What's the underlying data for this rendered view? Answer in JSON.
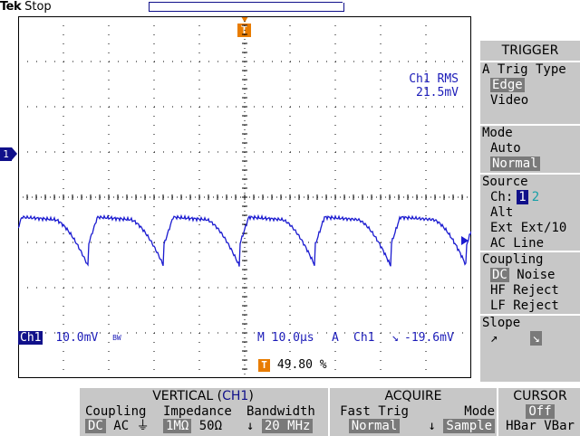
{
  "header": {
    "brand": "Tek",
    "state": "Stop"
  },
  "markers": {
    "trigger_glyph": "T",
    "channel_glyph": "1"
  },
  "measurement": {
    "label": "Ch1 RMS",
    "value": "21.5mV"
  },
  "status": {
    "channel": "Ch1",
    "volts_div": "10.0mV",
    "bw_mark": "BW",
    "timebase": "M 10.0µs",
    "trig_source_prefix": "A",
    "trig_channel": "Ch1",
    "trig_slope_glyph": "↘",
    "trig_level": "-19.6mV",
    "trig_position": "49.80 %"
  },
  "trigger_menu": {
    "title": "TRIGGER",
    "type": {
      "label": "A Trig Type",
      "options": [
        "Edge",
        "Video"
      ],
      "selected": "Edge"
    },
    "mode": {
      "label": "Mode",
      "options": [
        "Auto",
        "Normal"
      ],
      "selected": "Normal"
    },
    "source": {
      "label": "Source",
      "ch_label": "Ch:",
      "ch1": "1",
      "ch2": "2",
      "alt": "Alt",
      "ext": "Ext",
      "ext10": "Ext/10",
      "acline": "AC Line"
    },
    "coupling": {
      "label": "Coupling",
      "dc": "DC",
      "noise": "Noise",
      "hf": "HF Reject",
      "lf": "LF Reject"
    },
    "slope": {
      "label": "Slope",
      "rise": "↗",
      "fall": "↘"
    }
  },
  "vertical": {
    "title_prefix": "VERTICAL (",
    "title_ch": "CH1",
    "title_suffix": ")",
    "coupling_label": "Coupling",
    "coupling_dc": "DC",
    "coupling_ac": "AC",
    "coupling_gnd": "⏚",
    "impedance_label": "Impedance",
    "imp_1m": "1MΩ",
    "imp_50": "50Ω",
    "bandwidth_label": "Bandwidth",
    "bandwidth_value": "20 MHz"
  },
  "acquire": {
    "title": "ACQUIRE",
    "fast_label": "Fast Trig",
    "fast_value": "Normal",
    "mode_label": "Mode",
    "mode_value": "Sample"
  },
  "cursor": {
    "title": "CURSOR",
    "state": "Off",
    "hbar": "HBar",
    "vbar": "VBar"
  },
  "colors": {
    "trace": "#1b1bd0",
    "marker": "#10108a",
    "trigger": "#e87c00",
    "menu_bg": "#c7c7c7",
    "ch2": "#18a0a8"
  },
  "waveform": {
    "period_divisions": 1.67,
    "amplitude_divisions": 1.1
  }
}
